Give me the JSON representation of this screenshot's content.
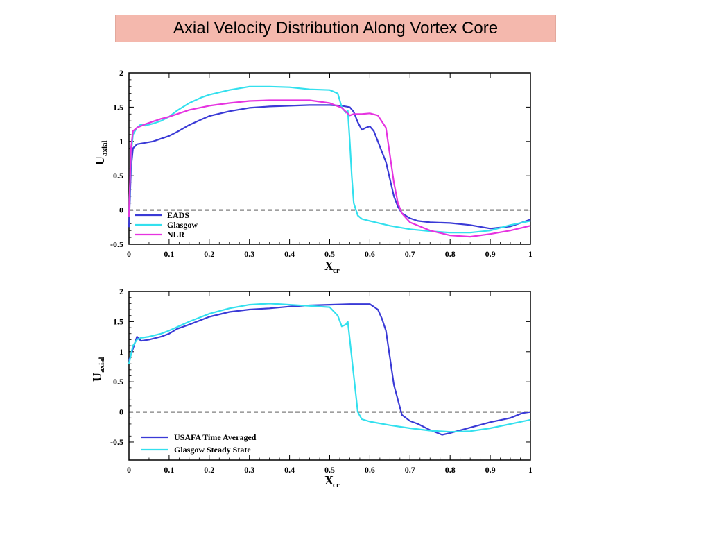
{
  "page": {
    "title": "Axial Velocity Distribution Along Vortex Core"
  },
  "chart_data": [
    {
      "type": "line",
      "xlabel_main": "X",
      "xlabel_sub": "cr",
      "ylabel_main": "U",
      "ylabel_sub": "axial",
      "xlim": [
        0,
        1
      ],
      "ylim": [
        -0.5,
        2
      ],
      "x_ticks": [
        "0",
        "0.1",
        "0.2",
        "0.3",
        "0.4",
        "0.5",
        "0.6",
        "0.7",
        "0.8",
        "0.9",
        "1"
      ],
      "y_ticks": [
        "-0.5",
        "0",
        "0.5",
        "1",
        "1.5",
        "2"
      ],
      "reference_line_y": 0,
      "legend_position": "bottom-left",
      "series": [
        {
          "name": "EADS",
          "color": "#3a3ad6",
          "x": [
            0,
            0.005,
            0.01,
            0.02,
            0.04,
            0.06,
            0.08,
            0.1,
            0.12,
            0.15,
            0.18,
            0.2,
            0.25,
            0.3,
            0.35,
            0.4,
            0.45,
            0.5,
            0.53,
            0.55,
            0.56,
            0.57,
            0.58,
            0.59,
            0.6,
            0.61,
            0.62,
            0.63,
            0.64,
            0.65,
            0.66,
            0.67,
            0.68,
            0.7,
            0.72,
            0.75,
            0.8,
            0.85,
            0.9,
            0.95,
            0.97,
            1.0
          ],
          "y": [
            -0.25,
            0.6,
            0.9,
            0.96,
            0.98,
            1.0,
            1.04,
            1.08,
            1.14,
            1.24,
            1.32,
            1.37,
            1.44,
            1.49,
            1.51,
            1.52,
            1.53,
            1.53,
            1.52,
            1.5,
            1.43,
            1.28,
            1.17,
            1.2,
            1.22,
            1.15,
            1.0,
            0.85,
            0.7,
            0.45,
            0.2,
            0.05,
            -0.05,
            -0.12,
            -0.16,
            -0.18,
            -0.19,
            -0.22,
            -0.27,
            -0.24,
            -0.2,
            -0.14
          ]
        },
        {
          "name": "Glasgow",
          "color": "#33e0ee",
          "x": [
            0,
            0.005,
            0.01,
            0.02,
            0.03,
            0.04,
            0.06,
            0.08,
            0.1,
            0.12,
            0.15,
            0.18,
            0.2,
            0.25,
            0.3,
            0.35,
            0.4,
            0.45,
            0.5,
            0.52,
            0.53,
            0.54,
            0.545,
            0.55,
            0.555,
            0.56,
            0.57,
            0.58,
            0.6,
            0.65,
            0.7,
            0.75,
            0.8,
            0.85,
            0.9,
            0.95,
            1.0
          ],
          "y": [
            -0.1,
            0.8,
            1.1,
            1.2,
            1.25,
            1.23,
            1.26,
            1.3,
            1.36,
            1.45,
            1.56,
            1.64,
            1.68,
            1.75,
            1.8,
            1.8,
            1.79,
            1.76,
            1.75,
            1.7,
            1.5,
            1.42,
            1.45,
            1.0,
            0.5,
            0.1,
            -0.08,
            -0.13,
            -0.16,
            -0.23,
            -0.28,
            -0.31,
            -0.33,
            -0.33,
            -0.3,
            -0.22,
            -0.16
          ]
        },
        {
          "name": "NLR",
          "color": "#e633e0",
          "x": [
            0,
            0.005,
            0.01,
            0.02,
            0.04,
            0.06,
            0.08,
            0.1,
            0.12,
            0.15,
            0.2,
            0.25,
            0.3,
            0.35,
            0.4,
            0.45,
            0.5,
            0.53,
            0.55,
            0.56,
            0.58,
            0.6,
            0.62,
            0.64,
            0.65,
            0.66,
            0.67,
            0.68,
            0.7,
            0.75,
            0.8,
            0.85,
            0.9,
            0.95,
            1.0
          ],
          "y": [
            -0.1,
            0.9,
            1.15,
            1.2,
            1.25,
            1.29,
            1.33,
            1.36,
            1.4,
            1.46,
            1.52,
            1.56,
            1.59,
            1.6,
            1.6,
            1.6,
            1.56,
            1.49,
            1.38,
            1.4,
            1.4,
            1.41,
            1.38,
            1.2,
            0.8,
            0.4,
            0.1,
            -0.05,
            -0.18,
            -0.3,
            -0.37,
            -0.39,
            -0.35,
            -0.3,
            -0.23
          ]
        }
      ]
    },
    {
      "type": "line",
      "xlabel_main": "X",
      "xlabel_sub": "cr",
      "ylabel_main": "U",
      "ylabel_sub": "axial",
      "xlim": [
        0,
        1
      ],
      "ylim": [
        -0.8,
        2
      ],
      "x_ticks": [
        "0",
        "0.1",
        "0.2",
        "0.3",
        "0.4",
        "0.5",
        "0.6",
        "0.7",
        "0.8",
        "0.9",
        "1"
      ],
      "y_ticks": [
        "-0.5",
        "0",
        "0.5",
        "1",
        "1.5",
        "2"
      ],
      "reference_line_y": 0,
      "legend_position": "bottom-left",
      "series": [
        {
          "name": "USAFA Time Averaged",
          "color": "#3a3ad6",
          "x": [
            0,
            0.01,
            0.02,
            0.03,
            0.05,
            0.08,
            0.1,
            0.12,
            0.15,
            0.2,
            0.25,
            0.3,
            0.35,
            0.4,
            0.45,
            0.5,
            0.55,
            0.6,
            0.62,
            0.63,
            0.64,
            0.65,
            0.66,
            0.67,
            0.68,
            0.7,
            0.72,
            0.75,
            0.78,
            0.8,
            0.85,
            0.9,
            0.95,
            0.98,
            1.0
          ],
          "y": [
            0.85,
            1.05,
            1.25,
            1.18,
            1.2,
            1.25,
            1.3,
            1.38,
            1.45,
            1.58,
            1.66,
            1.7,
            1.72,
            1.75,
            1.77,
            1.78,
            1.79,
            1.79,
            1.7,
            1.55,
            1.35,
            0.9,
            0.45,
            0.2,
            -0.05,
            -0.15,
            -0.2,
            -0.3,
            -0.38,
            -0.35,
            -0.26,
            -0.17,
            -0.1,
            -0.02,
            0.0
          ]
        },
        {
          "name": "Glasgow Steady State",
          "color": "#33e0ee",
          "x": [
            0,
            0.01,
            0.02,
            0.03,
            0.05,
            0.08,
            0.1,
            0.15,
            0.2,
            0.25,
            0.3,
            0.35,
            0.4,
            0.45,
            0.5,
            0.52,
            0.53,
            0.54,
            0.545,
            0.55,
            0.56,
            0.57,
            0.58,
            0.6,
            0.65,
            0.7,
            0.75,
            0.8,
            0.85,
            0.9,
            0.95,
            1.0
          ],
          "y": [
            0.8,
            1.1,
            1.2,
            1.23,
            1.25,
            1.3,
            1.35,
            1.5,
            1.63,
            1.72,
            1.78,
            1.8,
            1.78,
            1.76,
            1.74,
            1.6,
            1.42,
            1.45,
            1.5,
            1.2,
            0.6,
            0.0,
            -0.12,
            -0.16,
            -0.22,
            -0.27,
            -0.31,
            -0.33,
            -0.32,
            -0.27,
            -0.2,
            -0.13
          ]
        }
      ]
    }
  ]
}
